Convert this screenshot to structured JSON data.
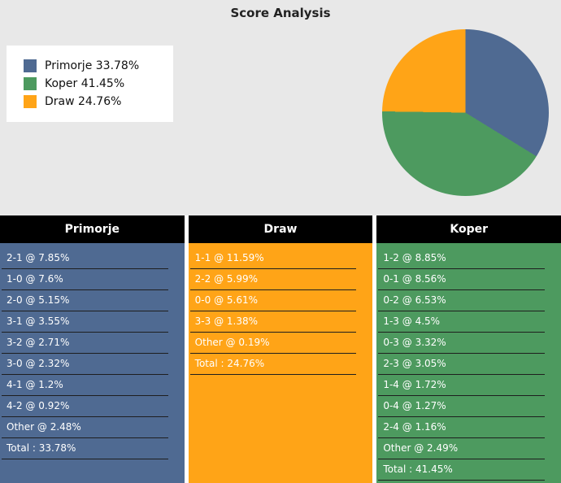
{
  "title": "Score Analysis",
  "colors": {
    "primorje_blue": "#4F6A92",
    "koper_green": "#4D9A5F",
    "draw_orange": "#FFA417",
    "header_bg": "#000000",
    "header_text": "#FFFFFF",
    "top_background": "#E8E8E8",
    "row_text": "#FFFFFF"
  },
  "chart_data": {
    "type": "pie",
    "title": "Score Analysis",
    "slices": [
      {
        "label": "Primorje",
        "value": 33.78,
        "color": "#4F6A92",
        "legend_label": "Primorje 33.78%"
      },
      {
        "label": "Koper",
        "value": 41.45,
        "color": "#4D9A5F",
        "legend_label": "Koper 41.45%"
      },
      {
        "label": "Draw",
        "value": 24.76,
        "color": "#FFA417",
        "legend_label": "Draw 24.76%"
      }
    ],
    "start_angle_deg": 0,
    "direction": "clockwise",
    "legend_position": "top-left"
  },
  "columns": [
    {
      "header": "Primorje",
      "color": "#4F6A92",
      "rows": [
        "2-1 @ 7.85%",
        "1-0 @ 7.6%",
        "2-0 @ 5.15%",
        "3-1 @ 3.55%",
        "3-2 @ 2.71%",
        "3-0 @ 2.32%",
        "4-1 @ 1.2%",
        "4-2 @ 0.92%",
        "Other @ 2.48%",
        "Total : 33.78%"
      ]
    },
    {
      "header": "Draw",
      "color": "#FFA417",
      "rows": [
        "1-1 @ 11.59%",
        "2-2 @ 5.99%",
        "0-0 @ 5.61%",
        "3-3 @ 1.38%",
        "Other @ 0.19%",
        "Total : 24.76%"
      ]
    },
    {
      "header": "Koper",
      "color": "#4D9A5F",
      "rows": [
        "1-2 @ 8.85%",
        "0-1 @ 8.56%",
        "0-2 @ 6.53%",
        "1-3 @ 4.5%",
        "0-3 @ 3.32%",
        "2-3 @ 3.05%",
        "1-4 @ 1.72%",
        "0-4 @ 1.27%",
        "2-4 @ 1.16%",
        "Other @ 2.49%",
        "Total : 41.45%"
      ]
    }
  ]
}
